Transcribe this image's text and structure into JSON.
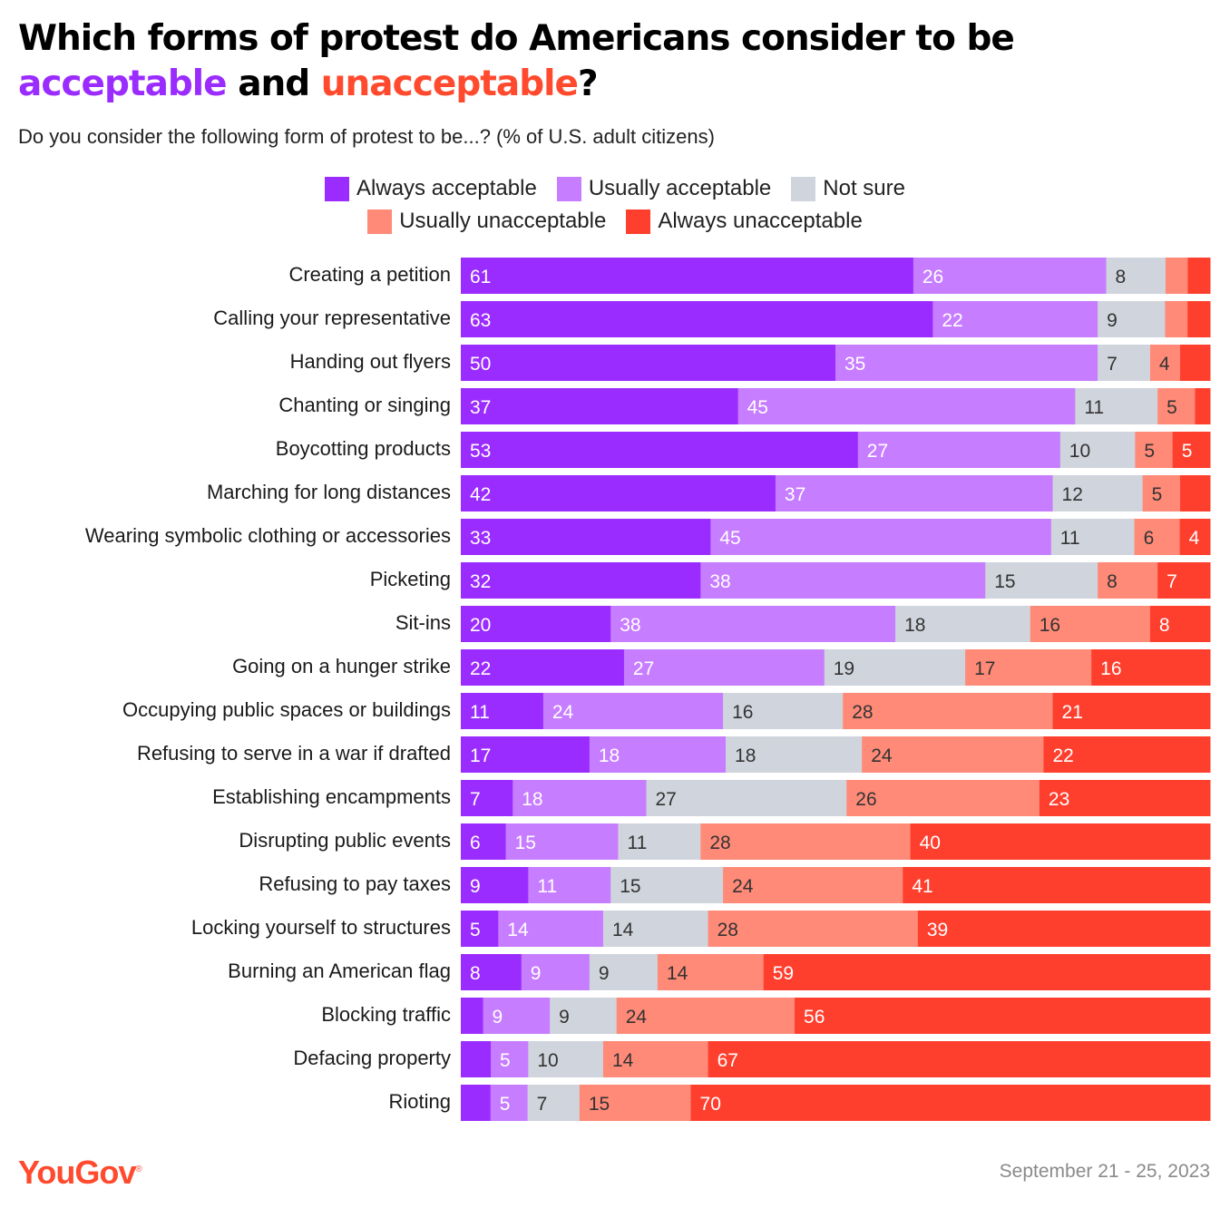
{
  "title": {
    "line1": "Which forms of protest do Americans consider to be",
    "acceptable": "acceptable",
    "and": "and",
    "unacceptable": "unacceptable",
    "qmark": "?"
  },
  "subtitle": "Do you consider the following form of protest to be...? (% of U.S. adult citizens)",
  "colors": {
    "always_acceptable": "#9b2cff",
    "usually_acceptable": "#c77dff",
    "not_sure": "#d0d4dc",
    "usually_unacceptable": "#ff8a78",
    "always_unacceptable": "#ff3f2e"
  },
  "legend": [
    {
      "label": "Always acceptable",
      "color": "#9b2cff"
    },
    {
      "label": "Usually acceptable",
      "color": "#c77dff"
    },
    {
      "label": "Not sure",
      "color": "#d0d4dc"
    },
    {
      "label": "Usually unacceptable",
      "color": "#ff8a78"
    },
    {
      "label": "Always unacceptable",
      "color": "#ff3f2e"
    }
  ],
  "chart_data": {
    "type": "bar",
    "orientation": "horizontal",
    "stacked": true,
    "legend_position": "top-center",
    "categories": [
      "Creating a petition",
      "Calling your representative",
      "Handing out flyers",
      "Chanting or singing",
      "Boycotting products",
      "Marching for long distances",
      "Wearing symbolic clothing or accessories",
      "Picketing",
      "Sit-ins",
      "Going on a hunger strike",
      "Occupying public spaces or buildings",
      "Refusing to serve in a war if drafted",
      "Establishing encampments",
      "Disrupting public events",
      "Refusing to pay taxes",
      "Locking yourself to structures",
      "Burning an American flag",
      "Blocking traffic",
      "Defacing property",
      "Rioting"
    ],
    "series": [
      {
        "name": "Always acceptable",
        "values": [
          61,
          63,
          50,
          37,
          53,
          42,
          33,
          32,
          20,
          22,
          11,
          17,
          7,
          6,
          9,
          5,
          8,
          3,
          4,
          4
        ],
        "labels": [
          "61",
          "63",
          "50",
          "37",
          "53",
          "42",
          "33",
          "32",
          "20",
          "22",
          "11",
          "17",
          "7",
          "6",
          "9",
          "5",
          "8",
          "",
          "",
          ""
        ]
      },
      {
        "name": "Usually acceptable",
        "values": [
          26,
          22,
          35,
          45,
          27,
          37,
          45,
          38,
          38,
          27,
          24,
          18,
          18,
          15,
          11,
          14,
          9,
          9,
          5,
          5
        ],
        "labels": [
          "26",
          "22",
          "35",
          "45",
          "27",
          "37",
          "45",
          "38",
          "38",
          "27",
          "24",
          "18",
          "18",
          "15",
          "11",
          "14",
          "9",
          "9",
          "5",
          "5"
        ]
      },
      {
        "name": "Not sure",
        "values": [
          8,
          9,
          7,
          11,
          10,
          12,
          11,
          15,
          18,
          19,
          16,
          18,
          27,
          11,
          15,
          14,
          9,
          9,
          10,
          7
        ],
        "labels": [
          "8",
          "9",
          "7",
          "11",
          "10",
          "12",
          "11",
          "15",
          "18",
          "19",
          "16",
          "18",
          "27",
          "11",
          "15",
          "14",
          "9",
          "9",
          "10",
          "7"
        ]
      },
      {
        "name": "Usually unacceptable",
        "values": [
          3,
          3,
          4,
          5,
          5,
          5,
          6,
          8,
          16,
          17,
          28,
          24,
          26,
          28,
          24,
          28,
          14,
          24,
          14,
          15
        ],
        "labels": [
          "",
          "",
          "4",
          "5",
          "5",
          "5",
          "6",
          "8",
          "16",
          "17",
          "28",
          "24",
          "26",
          "28",
          "24",
          "28",
          "14",
          "24",
          "14",
          "15"
        ]
      },
      {
        "name": "Always unacceptable",
        "values": [
          3,
          3,
          4,
          2,
          5,
          4,
          4,
          7,
          8,
          16,
          21,
          22,
          23,
          40,
          41,
          39,
          59,
          56,
          67,
          70
        ],
        "labels": [
          "",
          "",
          "",
          "",
          "5",
          "",
          "4",
          "7",
          "8",
          "16",
          "21",
          "22",
          "23",
          "40",
          "41",
          "39",
          "59",
          "56",
          "67",
          "70"
        ]
      }
    ],
    "xlim": [
      0,
      100
    ]
  },
  "footer": {
    "logo": "YouGov",
    "logo_mark": "®",
    "date": "September 21 - 25, 2023"
  }
}
